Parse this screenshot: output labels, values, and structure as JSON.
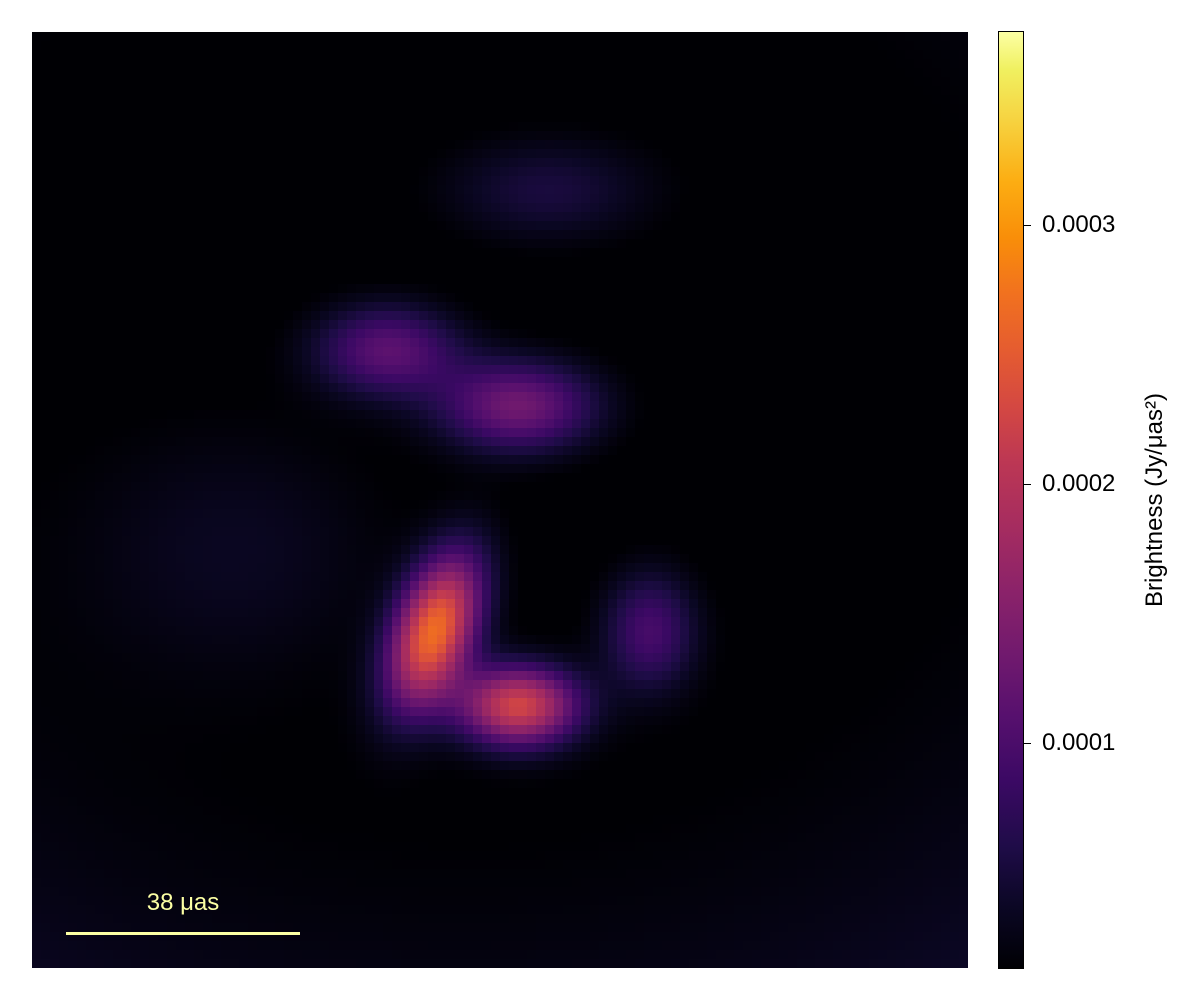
{
  "chart_data": {
    "type": "heatmap",
    "title": "",
    "xlabel": "",
    "ylabel": "",
    "colormap": "inferno",
    "colors": {
      "background": "#000004",
      "scalebar": "#fcffa4"
    },
    "colorbar": {
      "label": "Brightness (Jy/μas²)",
      "ticks": [
        0.0001,
        0.0002,
        0.0003
      ],
      "tick_labels": [
        "0.0001",
        "0.0002",
        "0.0003"
      ],
      "range": [
        1.25e-05,
        0.000375
      ]
    },
    "scale_bar": {
      "label": "38 μas",
      "length_uas": 38
    },
    "image": {
      "field_of_view_uas": 152,
      "components": [
        {
          "x": 0.46,
          "y": 0.36,
          "sigma_x": 0.13,
          "sigma_y": 0.11,
          "amp": 0.000105,
          "ring": 0.19,
          "width": 0.06
        },
        {
          "x": 0.43,
          "y": 0.64,
          "sigma_x": 0.03,
          "sigma_y": 0.06,
          "amp": 0.00026,
          "angle": -0.35
        },
        {
          "x": 0.52,
          "y": 0.72,
          "sigma_x": 0.045,
          "sigma_y": 0.03,
          "amp": 0.00022
        },
        {
          "x": 0.38,
          "y": 0.34,
          "sigma_x": 0.055,
          "sigma_y": 0.035,
          "amp": 0.00011
        },
        {
          "x": 0.52,
          "y": 0.4,
          "sigma_x": 0.06,
          "sigma_y": 0.035,
          "amp": 0.00013
        },
        {
          "x": 0.66,
          "y": 0.64,
          "sigma_x": 0.035,
          "sigma_y": 0.045,
          "amp": 9e-05
        },
        {
          "x": 0.55,
          "y": 0.17,
          "sigma_x": 0.08,
          "sigma_y": 0.04,
          "amp": 5e-05
        },
        {
          "x": 0.22,
          "y": 0.55,
          "sigma_x": 0.12,
          "sigma_y": 0.1,
          "amp": 3e-05
        }
      ]
    }
  }
}
